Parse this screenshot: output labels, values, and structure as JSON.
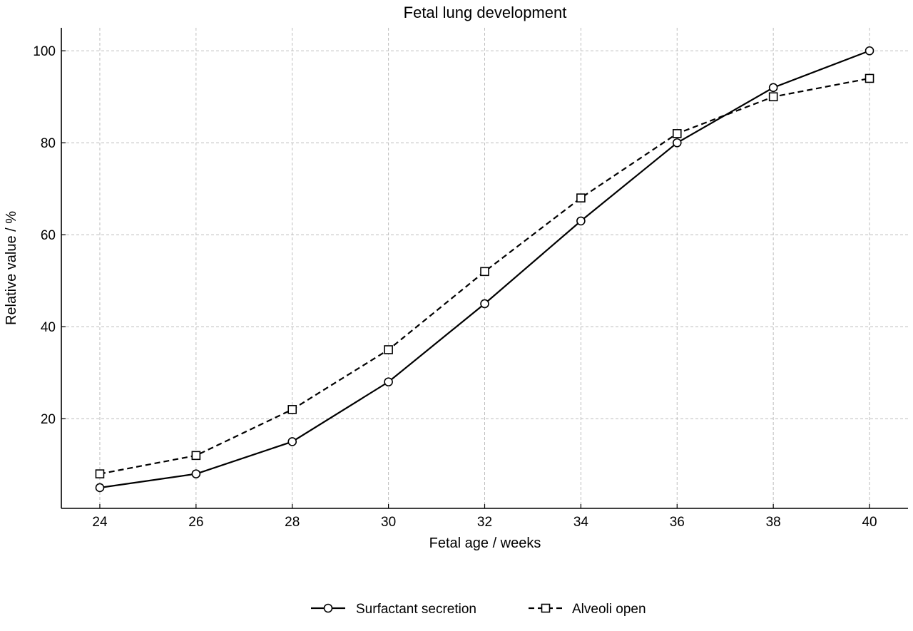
{
  "chart_data": {
    "type": "line",
    "title": "Fetal lung development",
    "xlabel": "Fetal age / weeks",
    "ylabel": "Relative value / %",
    "x": [
      24,
      26,
      28,
      30,
      32,
      34,
      36,
      38,
      40
    ],
    "xlim": [
      23.2,
      40.8
    ],
    "ylim": [
      0.5,
      105
    ],
    "xticks": [
      24,
      26,
      28,
      30,
      32,
      34,
      36,
      38,
      40
    ],
    "yticks": [
      20,
      40,
      60,
      80,
      100
    ],
    "grid": true,
    "legend_position": "bottom-center",
    "series": [
      {
        "name": "Surfactant secretion",
        "marker": "circle",
        "linestyle": "solid",
        "color": "#000000",
        "values": [
          5,
          8,
          15,
          28,
          45,
          63,
          80,
          92,
          100
        ]
      },
      {
        "name": "Alveoli open",
        "marker": "square",
        "linestyle": "dashed",
        "color": "#000000",
        "values": [
          8,
          12,
          22,
          35,
          52,
          68,
          82,
          90,
          94
        ]
      }
    ]
  }
}
